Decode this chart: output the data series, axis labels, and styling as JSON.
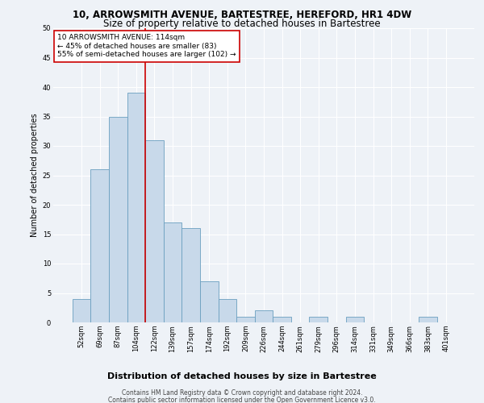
{
  "title": "10, ARROWSMITH AVENUE, BARTESTREE, HEREFORD, HR1 4DW",
  "subtitle": "Size of property relative to detached houses in Bartestree",
  "xlabel": "Distribution of detached houses by size in Bartestree",
  "ylabel": "Number of detached properties",
  "categories": [
    "52sqm",
    "69sqm",
    "87sqm",
    "104sqm",
    "122sqm",
    "139sqm",
    "157sqm",
    "174sqm",
    "192sqm",
    "209sqm",
    "226sqm",
    "244sqm",
    "261sqm",
    "279sqm",
    "296sqm",
    "314sqm",
    "331sqm",
    "349sqm",
    "366sqm",
    "383sqm",
    "401sqm"
  ],
  "values": [
    4,
    26,
    35,
    39,
    31,
    17,
    16,
    7,
    4,
    1,
    2,
    1,
    0,
    1,
    0,
    1,
    0,
    0,
    0,
    1,
    0
  ],
  "bar_color": "#c8d9ea",
  "bar_edge_color": "#6a9fc0",
  "vline_x": 3.5,
  "vline_color": "#cc0000",
  "annotation_text": "10 ARROWSMITH AVENUE: 114sqm\n← 45% of detached houses are smaller (83)\n55% of semi-detached houses are larger (102) →",
  "annotation_box_color": "#ffffff",
  "annotation_box_edge_color": "#cc0000",
  "ylim": [
    0,
    50
  ],
  "yticks": [
    0,
    5,
    10,
    15,
    20,
    25,
    30,
    35,
    40,
    45,
    50
  ],
  "footer1": "Contains HM Land Registry data © Crown copyright and database right 2024.",
  "footer2": "Contains public sector information licensed under the Open Government Licence v3.0.",
  "bg_color": "#eef2f7",
  "plot_bg_color": "#eef2f7",
  "grid_color": "#ffffff",
  "title_fontsize": 8.5,
  "subtitle_fontsize": 8.5,
  "xlabel_fontsize": 8,
  "ylabel_fontsize": 7,
  "tick_fontsize": 6,
  "annotation_fontsize": 6.5,
  "footer_fontsize": 5.5
}
